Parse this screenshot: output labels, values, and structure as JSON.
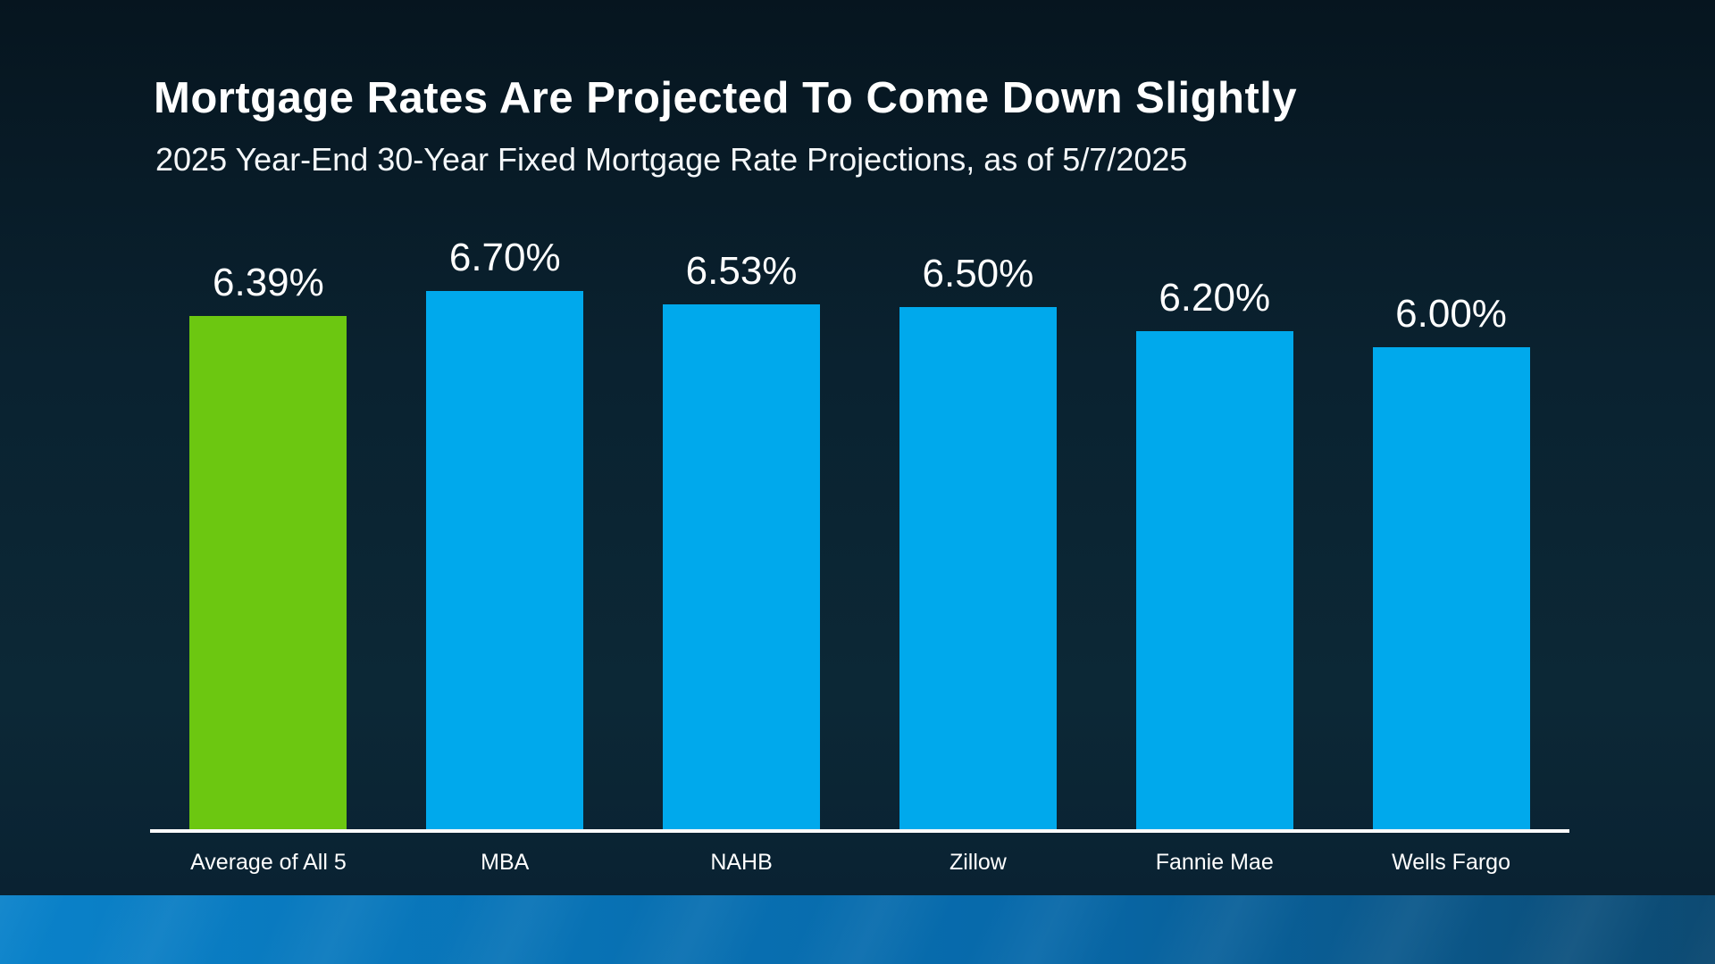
{
  "chart_data": {
    "type": "bar",
    "title": "Mortgage Rates Are Projected To Come Down Slightly",
    "subtitle": "2025 Year-End 30-Year Fixed Mortgage Rate Projections, as of 5/7/2025",
    "categories": [
      "Average of All 5",
      "MBA",
      "NAHB",
      "Zillow",
      "Fannie Mae",
      "Wells Fargo"
    ],
    "values": [
      6.39,
      6.7,
      6.53,
      6.5,
      6.2,
      6.0
    ],
    "value_labels": [
      "6.39%",
      "6.70%",
      "6.53%",
      "6.50%",
      "6.20%",
      "6.00%"
    ],
    "bar_colors": [
      "#6cc711",
      "#00a9ec",
      "#00a9ec",
      "#00a9ec",
      "#00a9ec",
      "#00a9ec"
    ],
    "highlight_color": "#6cc711",
    "series_color": "#00a9ec",
    "ylim": [
      0,
      6.7
    ],
    "xlabel": "",
    "ylabel": "",
    "grid": false,
    "legend": "none",
    "axis_line_color": "#fbfbfb"
  },
  "colors": {
    "background_top": "#06151f",
    "background_bottom": "#0c2836",
    "footer_left": "#0a82ca",
    "footer_right": "#0d4a72",
    "text": "#ffffff"
  }
}
